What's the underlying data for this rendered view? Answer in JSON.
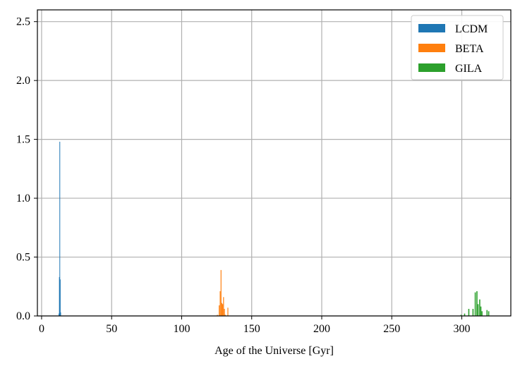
{
  "chart_data": {
    "type": "bar",
    "title": "",
    "xlabel": "Age of the Universe [Gyr]",
    "ylabel": "",
    "xlim": [
      -3,
      335
    ],
    "ylim": [
      0,
      2.6
    ],
    "xticks": [
      0,
      50,
      100,
      150,
      200,
      250,
      300
    ],
    "yticks": [
      0.0,
      0.5,
      1.0,
      1.5,
      2.0,
      2.5
    ],
    "xtick_labels": [
      "0",
      "50",
      "100",
      "150",
      "200",
      "250",
      "300"
    ],
    "ytick_labels": [
      "0.0",
      "0.5",
      "1.0",
      "1.5",
      "2.0",
      "2.5"
    ],
    "grid": true,
    "legend_position": "top-right",
    "series": [
      {
        "name": "LCDM",
        "color": "#1f77b4",
        "bin_width": 0.3,
        "x": [
          12.3,
          12.6,
          12.9,
          13.2,
          13.5
        ],
        "values": [
          0.02,
          0.33,
          1.48,
          0.31,
          0.03
        ]
      },
      {
        "name": "BETA",
        "color": "#ff7f0e",
        "bin_width": 0.6,
        "x": [
          125.5,
          126.8,
          127.5,
          128.1,
          128.7,
          129.3,
          129.9,
          130.5,
          131.1,
          133.0
        ],
        "values": [
          0.01,
          0.09,
          0.21,
          0.39,
          0.11,
          0.1,
          0.16,
          0.06,
          0.01,
          0.07
        ]
      },
      {
        "name": "GILA",
        "color": "#2ca02c",
        "bin_width": 0.8,
        "x": [
          299.5,
          302.0,
          305.0,
          308.0,
          309.6,
          310.8,
          311.6,
          312.8,
          313.6,
          314.4,
          318.0,
          319.2
        ],
        "values": [
          0.01,
          0.02,
          0.06,
          0.06,
          0.2,
          0.21,
          0.1,
          0.14,
          0.08,
          0.04,
          0.05,
          0.04
        ]
      }
    ]
  }
}
